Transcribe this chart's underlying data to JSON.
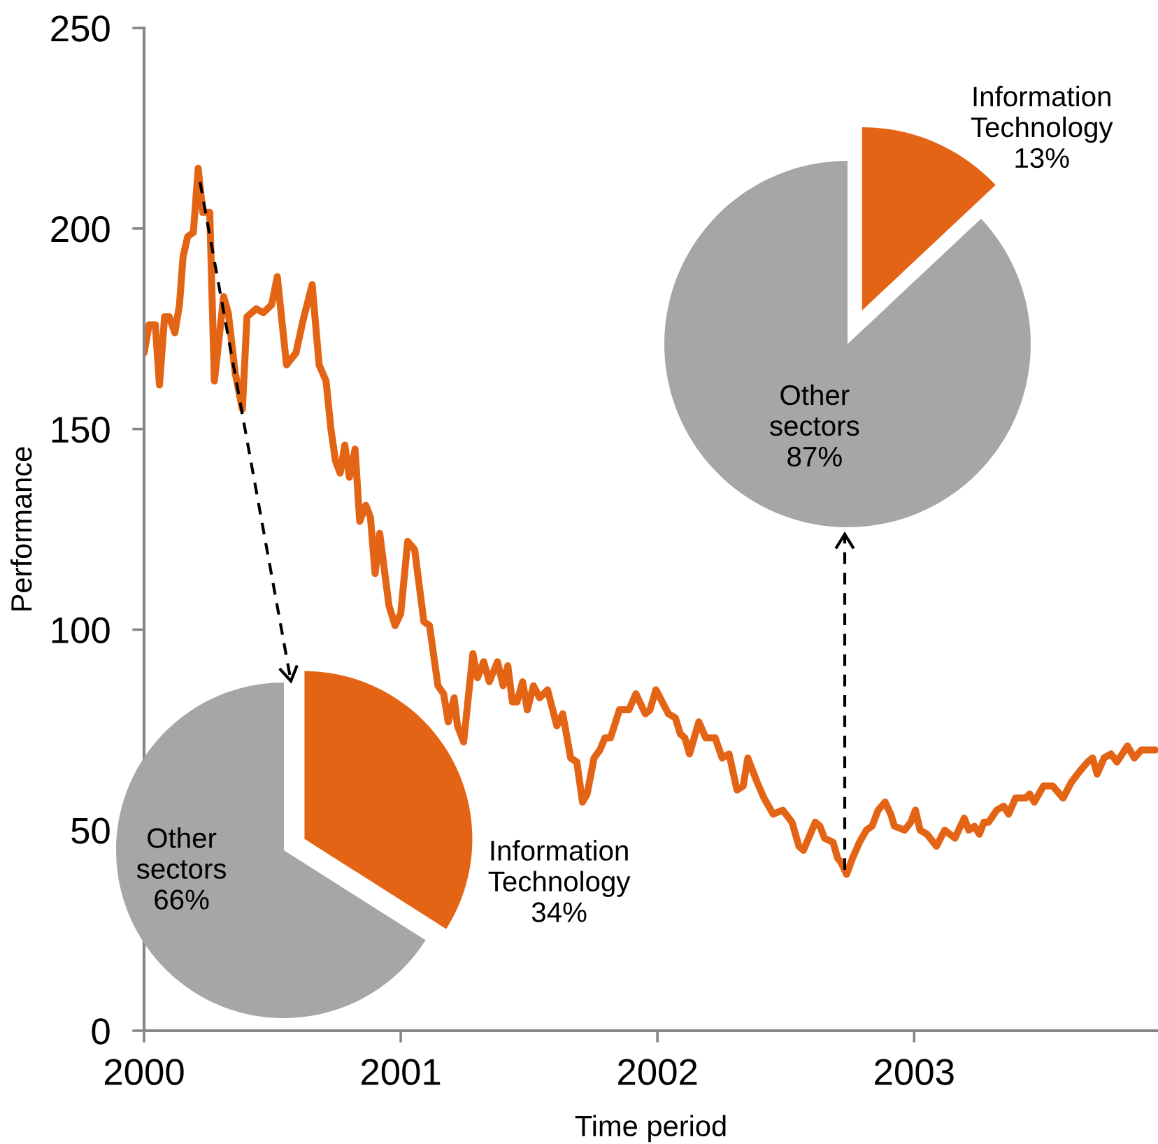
{
  "chart_data": [
    {
      "type": "line",
      "xlabel": "Time period",
      "ylabel": "Performance",
      "x": [
        2000.0,
        2000.02,
        2000.044,
        2000.06,
        2000.08,
        2000.098,
        2000.12,
        2000.138,
        2000.152,
        2000.17,
        2000.192,
        2000.211,
        2000.229,
        2000.256,
        2000.274,
        2000.31,
        2000.328,
        2000.355,
        2000.383,
        2000.401,
        2000.437,
        2000.464,
        2000.497,
        2000.519,
        2000.555,
        2000.592,
        2000.619,
        2000.655,
        2000.682,
        2000.709,
        2000.728,
        2000.746,
        2000.764,
        2000.782,
        2000.8,
        2000.822,
        2000.84,
        2000.864,
        2000.882,
        2000.9,
        2000.918,
        2000.936,
        2000.954,
        2000.978,
        2001.0,
        2001.027,
        2001.054,
        2001.09,
        2001.112,
        2001.145,
        2001.167,
        2001.185,
        2001.208,
        2001.221,
        2001.245,
        2001.281,
        2001.299,
        2001.323,
        2001.345,
        2001.377,
        2001.399,
        2001.417,
        2001.435,
        2001.453,
        2001.475,
        2001.493,
        2001.517,
        2001.541,
        2001.572,
        2001.608,
        2001.631,
        2001.662,
        2001.686,
        2001.708,
        2001.726,
        2001.753,
        2001.776,
        2001.795,
        2001.817,
        2001.852,
        2001.889,
        2001.916,
        2001.953,
        2001.971,
        2001.994,
        2002.043,
        2002.07,
        2002.089,
        2002.107,
        2002.125,
        2002.161,
        2002.188,
        2002.225,
        2002.252,
        2002.279,
        2002.31,
        2002.334,
        2002.352,
        2002.388,
        2002.415,
        2002.451,
        2002.488,
        2002.524,
        2002.551,
        2002.569,
        2002.615,
        2002.633,
        2002.651,
        2002.684,
        2002.702,
        2002.715,
        2002.737,
        2002.76,
        2002.787,
        2002.814,
        2002.836,
        2002.86,
        2002.887,
        2002.909,
        2002.923,
        2002.963,
        2002.987,
        2003.005,
        2003.023,
        2003.05,
        2003.087,
        2003.119,
        2003.159,
        2003.195,
        2003.213,
        2003.235,
        2003.254,
        2003.272,
        2003.29,
        2003.322,
        2003.349,
        2003.368,
        2003.395,
        2003.417,
        2003.435,
        2003.45,
        2003.468,
        2003.504,
        2003.54,
        2003.58,
        2003.613,
        2003.649,
        2003.676,
        2003.695,
        2003.713,
        2003.74,
        2003.767,
        2003.79,
        2003.831,
        2003.858,
        2003.885,
        2003.94
      ],
      "series": [
        {
          "color": "#e46415",
          "values": [
            169,
            176,
            176,
            161,
            178,
            178,
            174,
            181,
            193,
            198,
            199,
            215,
            204,
            204,
            162,
            183,
            179,
            164,
            155,
            178,
            180,
            179,
            181,
            188,
            166,
            169,
            177,
            186,
            166,
            162,
            150,
            142,
            139,
            146,
            138,
            145,
            127,
            131,
            128,
            114,
            124,
            115,
            106,
            101,
            104,
            122,
            120,
            102,
            101,
            86,
            84,
            77,
            83,
            76,
            72,
            94,
            88,
            92,
            87,
            92,
            86,
            91,
            82,
            82,
            87,
            80,
            86,
            83,
            85,
            76,
            79,
            68,
            67,
            57,
            59,
            68,
            70,
            73,
            73,
            80,
            80,
            84,
            79,
            80,
            85,
            79,
            78,
            74,
            73,
            69,
            77,
            73,
            73,
            68,
            69,
            60,
            61,
            68,
            62,
            58,
            54,
            55,
            52,
            46,
            45,
            52,
            51,
            48,
            47,
            43,
            42,
            39,
            43,
            47,
            50,
            51,
            55,
            57,
            54,
            51,
            50,
            52,
            55,
            50,
            49,
            46,
            50,
            48,
            53,
            50,
            51,
            49,
            52,
            52,
            55,
            56,
            54,
            58,
            58,
            58,
            59,
            57,
            61,
            61,
            58,
            62,
            65,
            67,
            68,
            64,
            68,
            69,
            67,
            71,
            68,
            70,
            70
          ]
        }
      ],
      "xlim": [
        2000,
        2003.95
      ],
      "xticks": [
        2000,
        2001,
        2002,
        2003
      ],
      "ylim": [
        0,
        250
      ],
      "yticks": [
        0,
        50,
        100,
        150,
        200,
        250
      ]
    },
    {
      "type": "pie",
      "categories": [
        "Information Technology",
        "Other sectors"
      ],
      "values": [
        34,
        66
      ],
      "colors": [
        "#e46415",
        "#a6a6a6"
      ],
      "value_labels": [
        "34%",
        "66%"
      ]
    },
    {
      "type": "pie",
      "categories": [
        "Information Technology",
        "Other sectors"
      ],
      "values": [
        13,
        87
      ],
      "colors": [
        "#e46415",
        "#a6a6a6"
      ],
      "value_labels": [
        "13%",
        "87%"
      ]
    }
  ]
}
